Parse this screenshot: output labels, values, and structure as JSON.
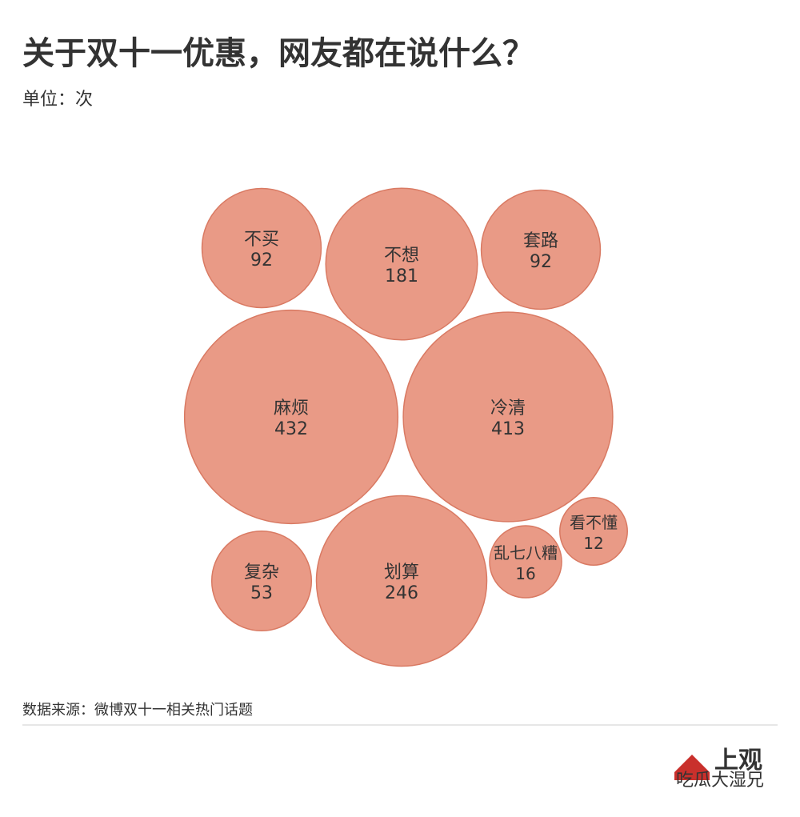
{
  "chart_data": {
    "type": "bubble",
    "title": "关于双十一优惠，网友都在说什么？",
    "subtitle": "单位：次",
    "source": "数据来源：微博双十一相关热门话题",
    "categories": [
      "不买",
      "不想",
      "套路",
      "麻烦",
      "冷清",
      "复杂",
      "划算",
      "乱七八糟",
      "看不懂"
    ],
    "values": [
      92,
      181,
      92,
      432,
      413,
      53,
      246,
      16,
      12
    ],
    "color": "#e99a86",
    "logo": "上观",
    "watermark": "吃瓜大湿兄"
  }
}
